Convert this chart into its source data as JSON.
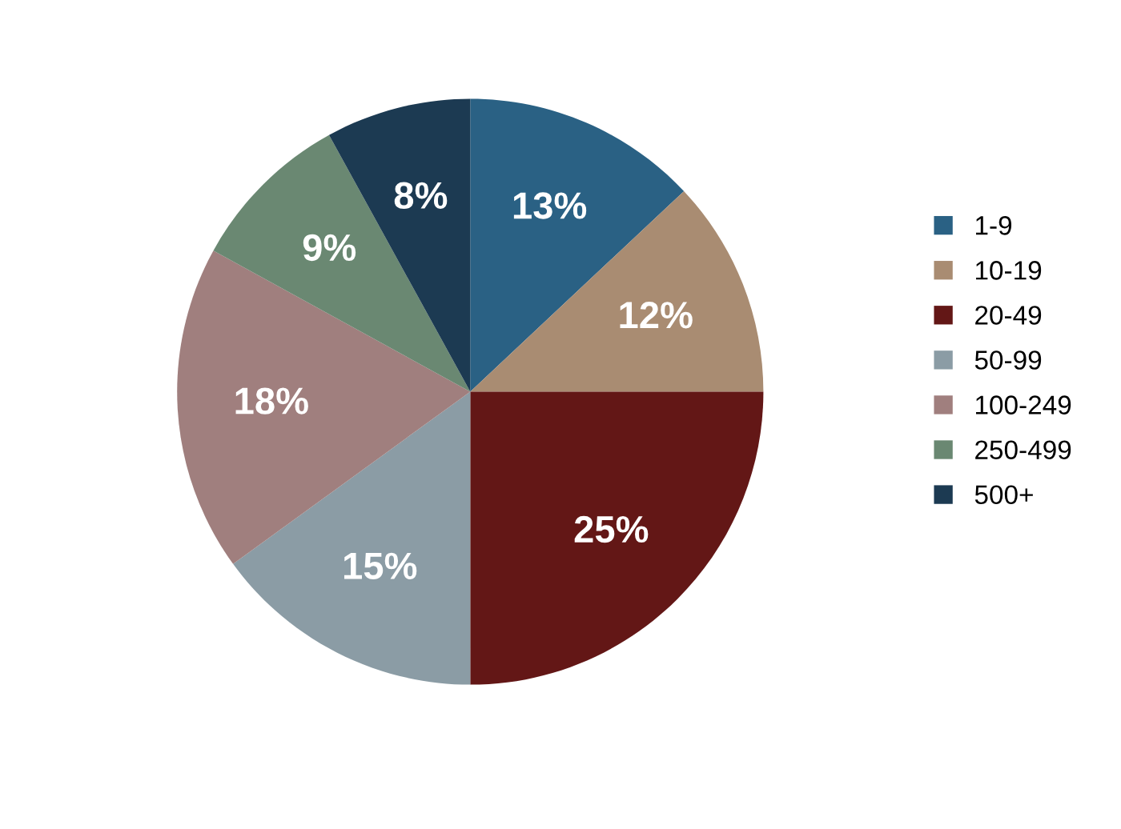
{
  "chart_data": {
    "type": "pie",
    "categories": [
      "1-9",
      "10-19",
      "20-49",
      "50-99",
      "100-249",
      "250-499",
      "500+"
    ],
    "values": [
      13,
      12,
      25,
      15,
      18,
      9,
      8
    ],
    "colors": [
      "#2a6184",
      "#a98c72",
      "#631716",
      "#8b9ca5",
      "#a07f7e",
      "#6a8872",
      "#1c3a52"
    ],
    "value_labels": [
      "13%",
      "12%",
      "25%",
      "15%",
      "18%",
      "9%",
      "8%"
    ],
    "legend": "right"
  }
}
